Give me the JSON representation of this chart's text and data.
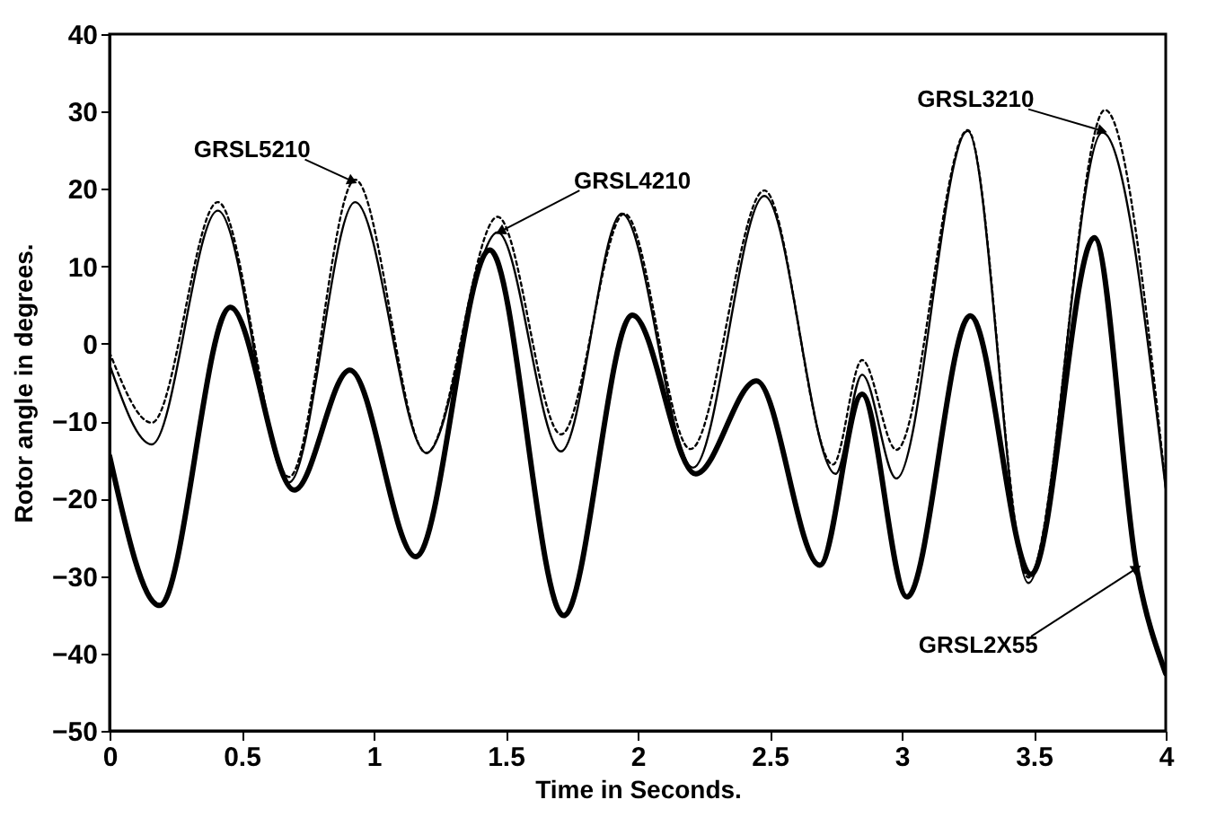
{
  "chart_data": {
    "type": "line",
    "xlabel": "Time in Seconds.",
    "ylabel": "Rotor angle in degrees.",
    "xlim": [
      0,
      4
    ],
    "xticks": [
      0,
      0.5,
      1,
      1.5,
      2,
      2.5,
      3,
      3.5,
      4
    ],
    "ylim": [
      -50,
      40
    ],
    "yticks": [
      -50,
      -40,
      -30,
      -20,
      -10,
      0,
      10,
      20,
      30,
      40
    ],
    "marker": "none",
    "series": [
      {
        "color": "#000000",
        "line_style": "dotted",
        "x": [
          0,
          0.16,
          0.41,
          0.68,
          0.93,
          1.2,
          1.47,
          1.71,
          1.95,
          2.2,
          2.48,
          2.74,
          2.85,
          2.98,
          3.25,
          3.48,
          3.77,
          4
        ],
        "values": [
          -1.1,
          -10.2,
          18.3,
          -17.2,
          21.2,
          -14.1,
          16.4,
          -11.7,
          16.8,
          -13.6,
          19.8,
          -15.6,
          -2.1,
          -13.7,
          27.6,
          -30.2,
          30.2,
          -18.5
        ]
      },
      {
        "color": "#000000",
        "line_style": "solid",
        "x": [
          0,
          0.16,
          0.41,
          0.68,
          0.93,
          1.2,
          1.47,
          1.71,
          1.94,
          2.21,
          2.48,
          2.75,
          2.85,
          2.98,
          3.25,
          3.48,
          3.76,
          4
        ],
        "values": [
          -2.7,
          -13,
          17.2,
          -17.9,
          18.3,
          -14.1,
          14.4,
          -13.9,
          16.8,
          -16,
          19.1,
          -16.8,
          -4,
          -17.4,
          27.5,
          -30.9,
          27.3,
          -18.7
        ]
      },
      {
        "color": "#000000",
        "line_style": "solid",
        "x": [
          0,
          0.19,
          0.457,
          0.7,
          0.91,
          1.16,
          1.44,
          1.72,
          1.98,
          2.22,
          2.45,
          2.69,
          2.85,
          3.02,
          3.26,
          3.49,
          3.73,
          3.89,
          4
        ],
        "values": [
          -14.5,
          -33.8,
          4.7,
          -18.9,
          -3.4,
          -27.5,
          12.1,
          -35.1,
          3.7,
          -16.8,
          -4.8,
          -28.6,
          -6.5,
          -32.7,
          3.6,
          -29.8,
          13.7,
          -29,
          -42.6
        ]
      }
    ],
    "annotations": [
      {
        "text": "GRSL5210",
        "x": 0.92,
        "y": 21
      },
      {
        "text": "GRSL4210",
        "x": 1.48,
        "y": 14.5
      },
      {
        "text": "GRSL3210",
        "x": 3.76,
        "y": 27.5
      },
      {
        "text": "GRSL2X55",
        "x": 3.89,
        "y": -29
      }
    ]
  }
}
